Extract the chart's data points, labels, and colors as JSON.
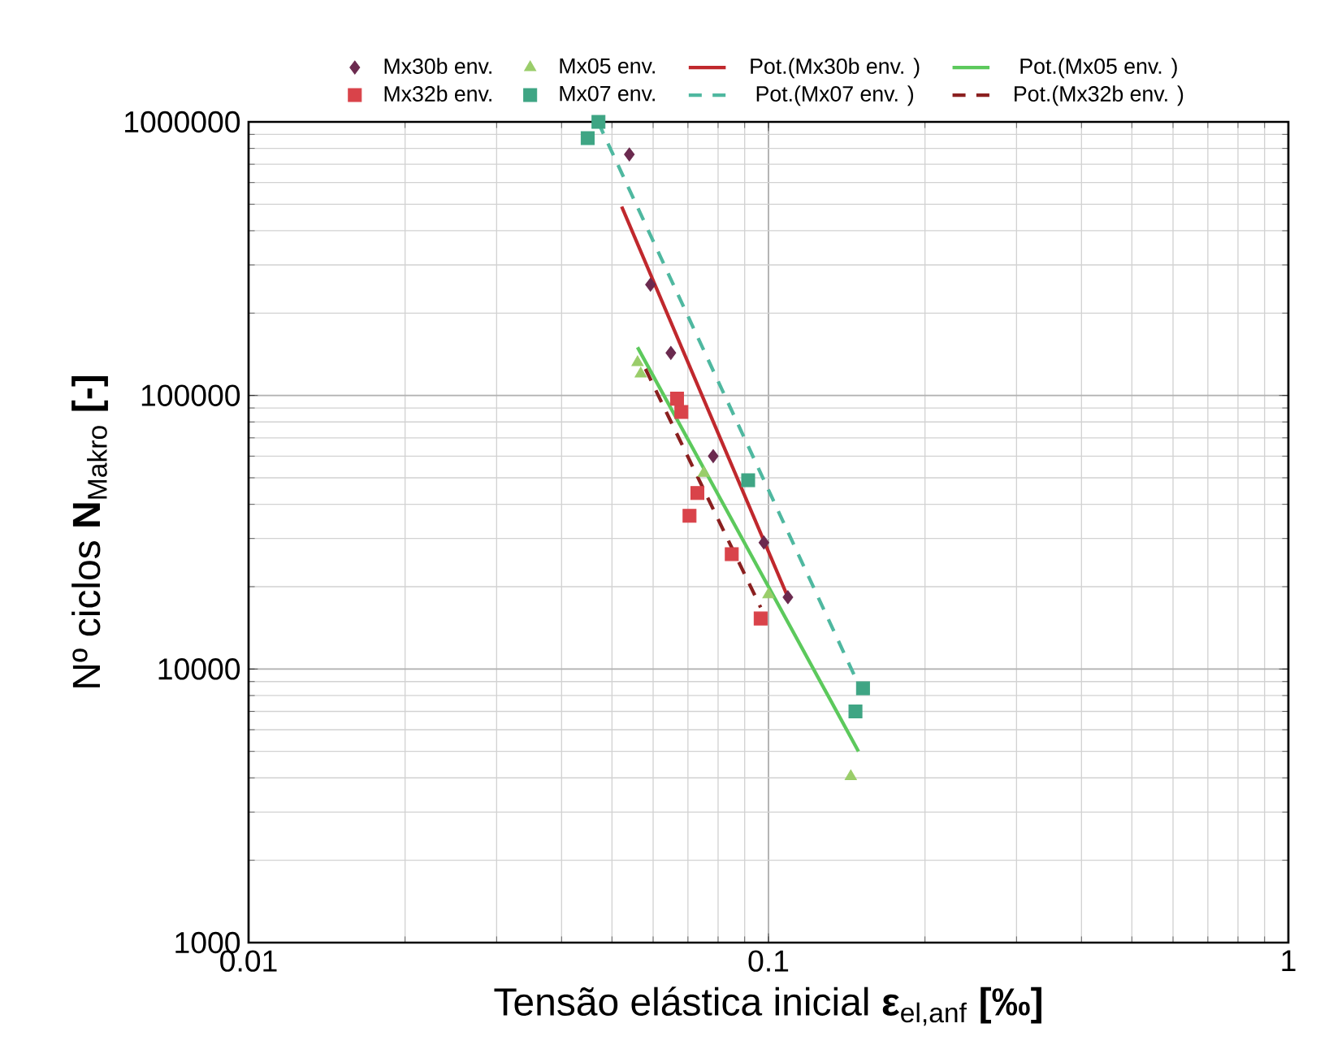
{
  "chart_data": {
    "type": "scatter",
    "xlabel": "Tensão elástica inicial **ε**$_{el,anf}$ **[‰]**",
    "ylabel": "Nº ciclos **N**$_{Makro}$ **[-]**",
    "log": "xy",
    "grid": true,
    "legend": "top",
    "xlim": [
      0.01,
      1
    ],
    "ylim": [
      1000,
      1000000
    ],
    "xticks": [
      0.01,
      0.1,
      1
    ],
    "yticks": [
      1000,
      10000,
      100000,
      1000000
    ],
    "series": [
      {
        "name": "Mx30b env.",
        "marker": "diamond",
        "color": "#6b2a4f",
        "x": [
          0.054,
          0.0593,
          0.0649,
          0.0783,
          0.098,
          0.109
        ],
        "values": [
          760000,
          254000,
          143000,
          60000,
          29000,
          18300
        ]
      },
      {
        "name": "Mx05 env.",
        "marker": "triangle",
        "color": "#9acd6a",
        "x": [
          0.056,
          0.0568,
          0.0751,
          0.1,
          0.144
        ],
        "values": [
          132000,
          120000,
          52000,
          18700,
          4050
        ]
      },
      {
        "name": "Pot.(Mx30b env. )",
        "type": "line",
        "marker": "none",
        "line_style": "solid",
        "color": "#c0282d",
        "x": [
          0.0522,
          0.109
        ],
        "values": [
          490000,
          18300
        ]
      },
      {
        "name": "Pot.(Mx05 env. )",
        "type": "line",
        "marker": "none",
        "line_style": "solid",
        "color": "#5cc95c",
        "x": [
          0.056,
          0.149
        ],
        "values": [
          150000,
          5000
        ]
      },
      {
        "name": "Mx32b env.",
        "marker": "square",
        "color": "#d9434a",
        "x": [
          0.0667,
          0.068,
          0.073,
          0.0705,
          0.085,
          0.0966
        ],
        "values": [
          97300,
          87000,
          44000,
          36300,
          26300,
          15300
        ]
      },
      {
        "name": "Mx07 env.",
        "marker": "square",
        "color": "#3fa584",
        "x": [
          0.0471,
          0.0449,
          0.0914,
          0.152,
          0.147
        ],
        "values": [
          1000000,
          872000,
          49000,
          8500,
          7000
        ]
      },
      {
        "name": "Pot.(Mx07 env. )",
        "type": "line",
        "marker": "none",
        "line_style": "dashed",
        "color": "#4fb8a0",
        "x": [
          0.047,
          0.152
        ],
        "values": [
          1000000,
          8100
        ]
      },
      {
        "name": "Pot.(Mx32b  env. )",
        "type": "line",
        "marker": "none",
        "line_style": "dashed",
        "color": "#8b2020",
        "x": [
          0.058,
          0.0966
        ],
        "values": [
          125000,
          16800
        ]
      }
    ]
  }
}
